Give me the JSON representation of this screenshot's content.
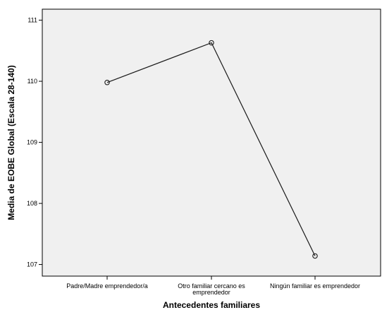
{
  "chart_data": {
    "type": "line",
    "xlabel": "Antecedentes familiares",
    "ylabel": "Media de EOBE Global (Escala 28-140)",
    "categories": [
      [
        "Padre/Madre emprendedor/a"
      ],
      [
        "Otro familiar cercano es",
        "emprendedor"
      ],
      [
        "Ningún familiar es emprendedor"
      ]
    ],
    "values": [
      109.98,
      110.63,
      107.14
    ],
    "ylim": [
      106.81,
      111.18
    ],
    "yticks": [
      107,
      108,
      109,
      110,
      111
    ],
    "grid": false,
    "legend": false,
    "colors": {
      "line": "#1a1a1a",
      "marker_stroke": "#1a1a1a",
      "plot_background": "#f0f0f0",
      "frame": "#000000"
    }
  }
}
